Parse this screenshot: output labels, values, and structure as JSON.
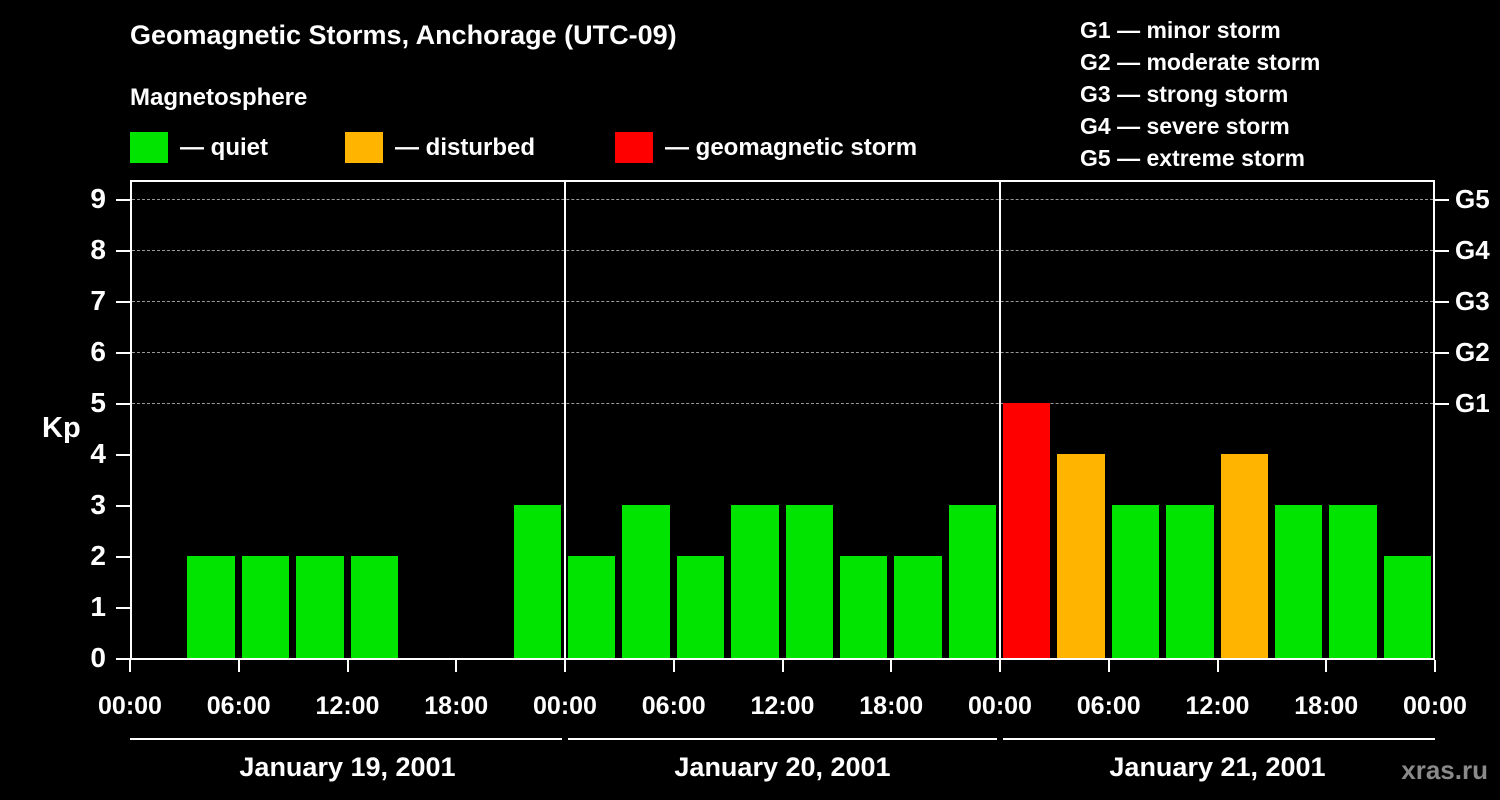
{
  "title": "Geomagnetic Storms, Anchorage (UTC-09)",
  "subtitle": "Magnetosphere",
  "legend": [
    {
      "label": "— quiet",
      "color": "#00e400"
    },
    {
      "label": "— disturbed",
      "color": "#ffb400"
    },
    {
      "label": "— geomagnetic storm",
      "color": "#ff0000"
    }
  ],
  "g_legend": [
    "G1 — minor storm",
    "G2 — moderate storm",
    "G3 — strong storm",
    "G4 — severe storm",
    "G5 — extreme storm"
  ],
  "watermark": "xras.ru",
  "chart_data": {
    "type": "bar",
    "title": "Geomagnetic Storms, Anchorage (UTC-09)",
    "ylabel": "Kp",
    "ylim": [
      0,
      9.4
    ],
    "yticks": [
      0,
      1,
      2,
      3,
      4,
      5,
      6,
      7,
      8,
      9
    ],
    "gridlines": [
      5,
      6,
      7,
      8,
      9
    ],
    "right_axis": [
      {
        "value": 5,
        "label": "G1"
      },
      {
        "value": 6,
        "label": "G2"
      },
      {
        "value": 7,
        "label": "G3"
      },
      {
        "value": 8,
        "label": "G4"
      },
      {
        "value": 9,
        "label": "G5"
      }
    ],
    "x_tick_labels": [
      "00:00",
      "06:00",
      "12:00",
      "18:00",
      "00:00",
      "06:00",
      "12:00",
      "18:00",
      "00:00",
      "06:00",
      "12:00",
      "18:00",
      "00:00"
    ],
    "interval_hours": 3,
    "days": [
      {
        "label": "January 19, 2001",
        "values": [
          0,
          2,
          2,
          2,
          2,
          0,
          0,
          3
        ]
      },
      {
        "label": "January 20, 2001",
        "values": [
          2,
          3,
          2,
          3,
          3,
          2,
          2,
          3
        ]
      },
      {
        "label": "January 21, 2001",
        "values": [
          5,
          4,
          3,
          3,
          4,
          3,
          3,
          2
        ]
      }
    ],
    "color_rules": {
      "storm_min": 5,
      "disturbed_min": 4
    }
  }
}
